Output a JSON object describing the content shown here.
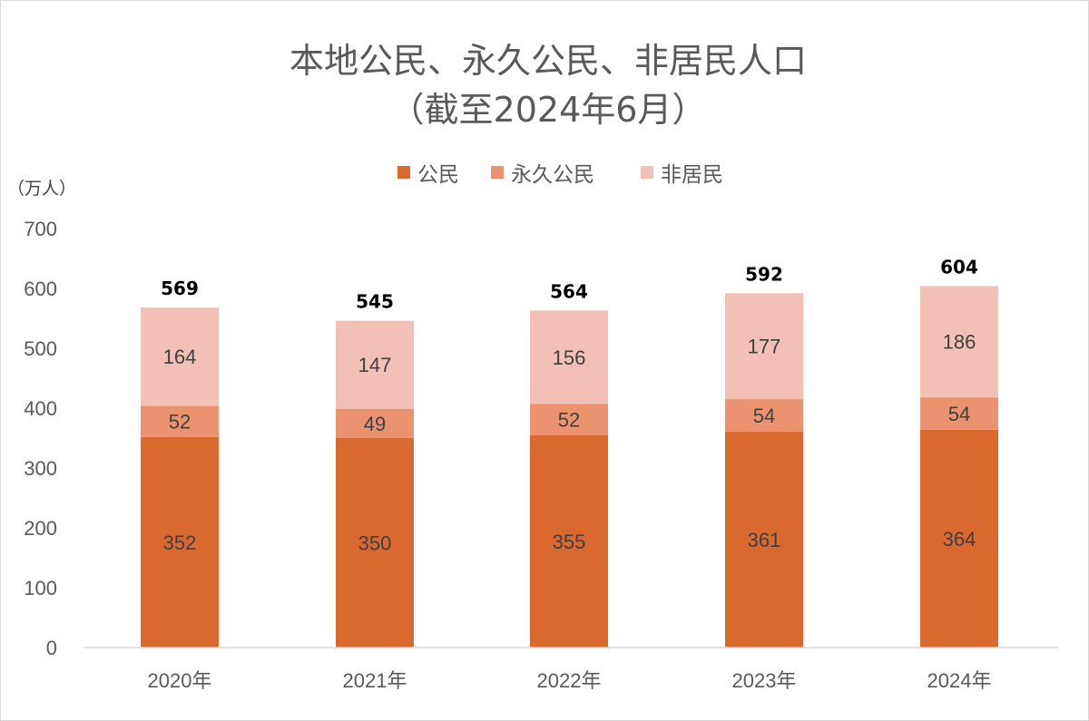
{
  "chart_data": {
    "type": "bar",
    "stacked": true,
    "title": [
      "本地公民、永久公民、非居民人口",
      "（截至2024年6月）"
    ],
    "ylabel": "（万人）",
    "xlabel": "",
    "ylim": [
      0,
      700
    ],
    "yticks": [
      0,
      100,
      200,
      300,
      400,
      500,
      600,
      700
    ],
    "categories": [
      "2020年",
      "2021年",
      "2022年",
      "2023年",
      "2024年"
    ],
    "series": [
      {
        "name": "公民",
        "color": "#d9692f",
        "values": [
          352,
          350,
          355,
          361,
          364
        ]
      },
      {
        "name": "永久公民",
        "color": "#eb9370",
        "values": [
          52,
          49,
          52,
          54,
          54
        ]
      },
      {
        "name": "非居民",
        "color": "#f2c0b4",
        "values": [
          164,
          147,
          156,
          177,
          186
        ]
      }
    ],
    "totals": [
      569,
      545,
      564,
      592,
      604
    ],
    "legend_position": "top-center",
    "grid": false
  }
}
